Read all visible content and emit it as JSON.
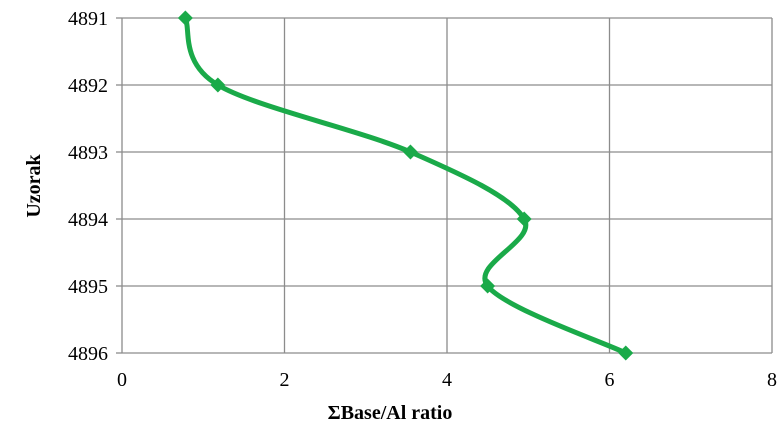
{
  "chart_data": {
    "type": "line",
    "title": "",
    "xlabel": "ΣBase/Al ratio",
    "ylabel": "Uzorak",
    "x_ticks": [
      "0",
      "2",
      "4",
      "6",
      "8"
    ],
    "y_ticks": [
      "4891",
      "4892",
      "4893",
      "4894",
      "4895",
      "4896"
    ],
    "xlim": [
      0,
      8
    ],
    "ylim": [
      4891,
      4896
    ],
    "y_inverted": true,
    "grid": true,
    "legend": "none",
    "series": [
      {
        "x": [
          0.78,
          1.18,
          3.55,
          4.95,
          4.5,
          6.2
        ],
        "y": [
          4891,
          4892,
          4893,
          4894,
          4895,
          4896
        ]
      }
    ],
    "colors": {
      "series": "#1aaa49",
      "grid": "#8c8c8c",
      "axis": "#8c8c8c"
    }
  }
}
